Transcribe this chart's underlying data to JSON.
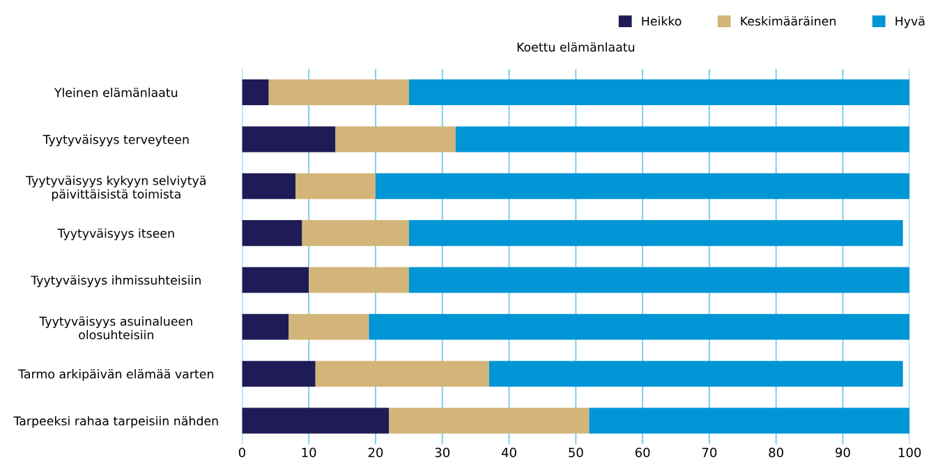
{
  "chart_data": {
    "type": "bar",
    "orientation": "horizontal",
    "stacked": true,
    "title": "Koettu elämänlaatu",
    "categories": [
      "Yleinen elämänlaatu",
      "Tyytyväisyys terveyteen",
      "Tyytyväisyys kykyyn selviytyä\npäivittäisistä toimista",
      "Tyytyväisyys itseen",
      "Tyytyväisyys ihmissuhteisiin",
      "Tyytyväisyys asuinalueen\nolosuhteisiin",
      "Tarmo arkipäivän elämää varten",
      "Tarpeeksi rahaa tarpeisiin nähden"
    ],
    "series": [
      {
        "name": "Heikko",
        "color": "#1e1b57",
        "values": [
          4,
          14,
          8,
          9,
          10,
          7,
          11,
          22
        ]
      },
      {
        "name": "Keskimääräinen",
        "color": "#d3b57a",
        "values": [
          21,
          18,
          12,
          16,
          15,
          12,
          26,
          30
        ]
      },
      {
        "name": "Hyvä",
        "color": "#0096d6",
        "values": [
          75,
          68,
          80,
          74,
          75,
          81,
          62,
          48
        ]
      }
    ],
    "xlim": [
      0,
      100
    ],
    "xticks": [
      0,
      10,
      20,
      30,
      40,
      50,
      60,
      70,
      80,
      90,
      100
    ],
    "grid": "x",
    "legend": "top right"
  }
}
